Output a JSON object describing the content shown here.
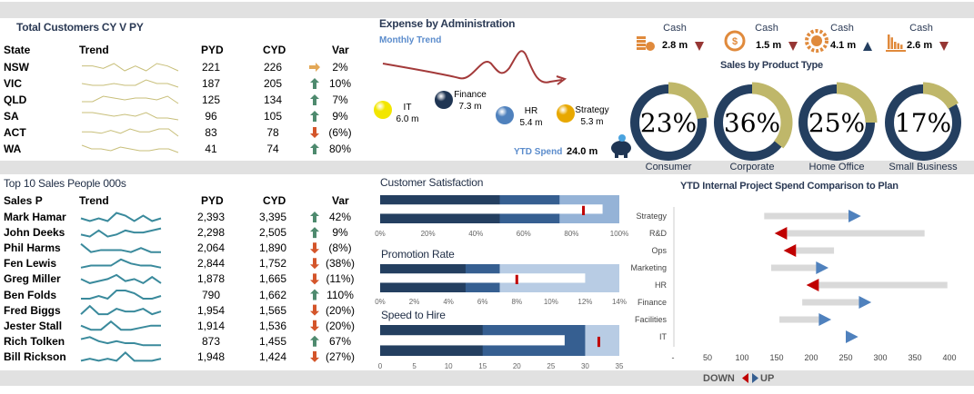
{
  "colors": {
    "navy": "#243f60",
    "mid": "#365f91",
    "light": "#b8cce4",
    "light2": "#95b3d7",
    "gold": "#bfb76a",
    "red": "#c00000",
    "up": "#4f81bd",
    "green": "#4e8a6e",
    "orange": "#d4552a",
    "amber": "#e3a857"
  },
  "customers": {
    "title": "Total Customers CY V PY",
    "headers": {
      "state": "State",
      "trend": "Trend",
      "pyd": "PYD",
      "cyd": "CYD",
      "var": "Var"
    },
    "rows": [
      {
        "state": "NSW",
        "pyd": "221",
        "cyd": "226",
        "var": "2%",
        "icon": "arrow-right-icon",
        "trend": [
          5,
          5,
          4,
          6,
          3,
          5,
          3,
          6,
          5,
          3
        ]
      },
      {
        "state": "VIC",
        "pyd": "187",
        "cyd": "205",
        "var": "10%",
        "icon": "arrow-up-icon",
        "trend": [
          4,
          3,
          3,
          4,
          3,
          3,
          6,
          4,
          4,
          2
        ]
      },
      {
        "state": "QLD",
        "pyd": "125",
        "cyd": "134",
        "var": "7%",
        "icon": "arrow-up-icon",
        "trend": [
          3,
          3,
          6,
          5,
          4,
          5,
          5,
          4,
          6,
          2
        ]
      },
      {
        "state": "SA",
        "pyd": "96",
        "cyd": "105",
        "var": "9%",
        "icon": "arrow-up-icon",
        "trend": [
          5,
          5,
          4,
          3,
          4,
          3,
          5,
          2,
          2,
          1
        ]
      },
      {
        "state": "ACT",
        "pyd": "83",
        "cyd": "78",
        "var": "(6%)",
        "icon": "arrow-down-icon",
        "trend": [
          3,
          3,
          2,
          4,
          2,
          5,
          3,
          3,
          5,
          5,
          0
        ]
      },
      {
        "state": "WA",
        "pyd": "41",
        "cyd": "74",
        "var": "80%",
        "icon": "arrow-up-icon",
        "trend": [
          6,
          4,
          4,
          3,
          5,
          4,
          3,
          3,
          4,
          4,
          2
        ]
      }
    ]
  },
  "sales": {
    "title": "Top 10 Sales People 000s",
    "headers": {
      "name": "Sales P",
      "trend": "Trend",
      "pyd": "PYD",
      "cyd": "CYD",
      "var": "Var"
    },
    "rows": [
      {
        "name": "Mark Hamar",
        "pyd": "2,393",
        "cyd": "3,395",
        "var": "42%",
        "icon": "arrow-up-icon",
        "trend": [
          3,
          2,
          3,
          2,
          5,
          4,
          2,
          4,
          2,
          3
        ]
      },
      {
        "name": "John Deeks",
        "pyd": "2,298",
        "cyd": "2,505",
        "var": "9%",
        "icon": "arrow-up-icon",
        "trend": [
          2,
          1,
          4,
          1,
          2,
          4,
          3,
          3,
          4,
          5
        ]
      },
      {
        "name": "Phil Harms",
        "pyd": "2,064",
        "cyd": "1,890",
        "var": "(8%)",
        "icon": "arrow-down-icon",
        "trend": [
          5,
          1,
          2,
          2,
          2,
          1,
          3,
          1,
          1
        ]
      },
      {
        "name": "Fen Lewis",
        "pyd": "2,844",
        "cyd": "1,752",
        "var": "(38%)",
        "icon": "arrow-down-icon",
        "trend": [
          1,
          2,
          2,
          2,
          5,
          3,
          2,
          2,
          1
        ]
      },
      {
        "name": "Greg Miller",
        "pyd": "1,878",
        "cyd": "1,665",
        "var": "(11%)",
        "icon": "arrow-down-icon",
        "trend": [
          3,
          1,
          2,
          3,
          5,
          2,
          3,
          1,
          4,
          1
        ]
      },
      {
        "name": "Ben Folds",
        "pyd": "790",
        "cyd": "1,662",
        "var": "110%",
        "icon": "arrow-up-icon",
        "trend": [
          1,
          1,
          2,
          1,
          4,
          4,
          3,
          1,
          1,
          2
        ]
      },
      {
        "name": "Fred Biggs",
        "pyd": "1,954",
        "cyd": "1,565",
        "var": "(20%)",
        "icon": "arrow-down-icon",
        "trend": [
          1,
          4,
          1,
          1,
          3,
          2,
          2,
          3,
          1,
          2
        ]
      },
      {
        "name": "Jester Stall",
        "pyd": "1,914",
        "cyd": "1,536",
        "var": "(20%)",
        "icon": "arrow-down-icon",
        "trend": [
          3,
          1,
          1,
          5,
          1,
          1,
          2,
          3,
          3
        ]
      },
      {
        "name": "Rich Tolken",
        "pyd": "873",
        "cyd": "1,455",
        "var": "67%",
        "icon": "arrow-up-icon",
        "trend": [
          4,
          5,
          3,
          2,
          3,
          2,
          2,
          1,
          1,
          1
        ]
      },
      {
        "name": "Bill Rickson",
        "pyd": "1,948",
        "cyd": "1,424",
        "var": "(27%)",
        "icon": "arrow-down-icon",
        "trend": [
          1,
          2,
          1,
          2,
          1,
          5,
          1,
          1,
          1,
          2
        ]
      }
    ]
  },
  "expense": {
    "title": "Expense by Administration",
    "subtitle": "Monthly Trend",
    "items": [
      {
        "label": "IT",
        "value": "6.0 m",
        "color": "#f2e600"
      },
      {
        "label": "Finance",
        "value": "7.3 m",
        "color": "#1f3553"
      },
      {
        "label": "HR",
        "value": "5.4 m",
        "color": "#4f81bd"
      },
      {
        "label": "Strategy",
        "value": "5.3 m",
        "color": "#e8a800"
      }
    ],
    "ytd_label": "YTD Spend",
    "ytd_value": "24.0 m"
  },
  "cash": [
    {
      "label": "Cash",
      "value": "2.8 m",
      "direction": "down",
      "icon": "coins-icon"
    },
    {
      "label": "Cash",
      "value": "1.5 m",
      "direction": "down",
      "icon": "dollar-cycle-icon"
    },
    {
      "label": "Cash",
      "value": "4.1 m",
      "direction": "up",
      "icon": "gear-handshake-icon"
    },
    {
      "label": "Cash",
      "value": "2.6 m",
      "direction": "down",
      "icon": "bar-chart-icon"
    }
  ],
  "products": {
    "title": "Sales by Product Type",
    "items": [
      {
        "label": "Consumer",
        "percent": 23,
        "text": "23%"
      },
      {
        "label": "Corporate",
        "percent": 36,
        "text": "36%"
      },
      {
        "label": "Home Office",
        "percent": 25,
        "text": "25%"
      },
      {
        "label": "Small Business",
        "percent": 17,
        "text": "17%"
      }
    ]
  },
  "chart_data": [
    {
      "type": "bullet",
      "title": "Customer Satisfaction",
      "ranges": [
        50,
        75,
        100
      ],
      "actual": 93,
      "target": 85,
      "xlim": [
        0,
        100
      ],
      "ticks": [
        "0%",
        "20%",
        "40%",
        "60%",
        "80%",
        "100%"
      ]
    },
    {
      "type": "bullet",
      "title": "Promotion Rate",
      "ranges": [
        5,
        7,
        14
      ],
      "actual": 12,
      "target": 8,
      "xlim": [
        0,
        14
      ],
      "ticks": [
        "0%",
        "2%",
        "4%",
        "6%",
        "8%",
        "10%",
        "12%",
        "14%"
      ]
    },
    {
      "type": "bullet",
      "title": "Speed to Hire",
      "ranges": [
        15,
        30,
        35
      ],
      "actual": 27,
      "target": 32,
      "xlim": [
        0,
        35
      ],
      "ticks": [
        "0",
        "5",
        "10",
        "15",
        "20",
        "25",
        "30",
        "35"
      ]
    },
    {
      "type": "bar",
      "title": "YTD Internal Project Spend Comparison to Plan",
      "categories": [
        "Strategy",
        "R&D",
        "Ops",
        "Marketing",
        "HR",
        "Finance",
        "Facilities",
        "IT"
      ],
      "start": [
        132,
        364,
        233,
        142,
        397,
        187,
        154,
        250
      ],
      "end": [
        272,
        147,
        160,
        225,
        193,
        287,
        229,
        268
      ],
      "xlim": [
        0,
        400
      ],
      "ticks": [
        "-",
        "50",
        "100",
        "150",
        "200",
        "250",
        "300",
        "350",
        "400"
      ],
      "legend": {
        "down": "DOWN",
        "up": "UP"
      }
    }
  ]
}
